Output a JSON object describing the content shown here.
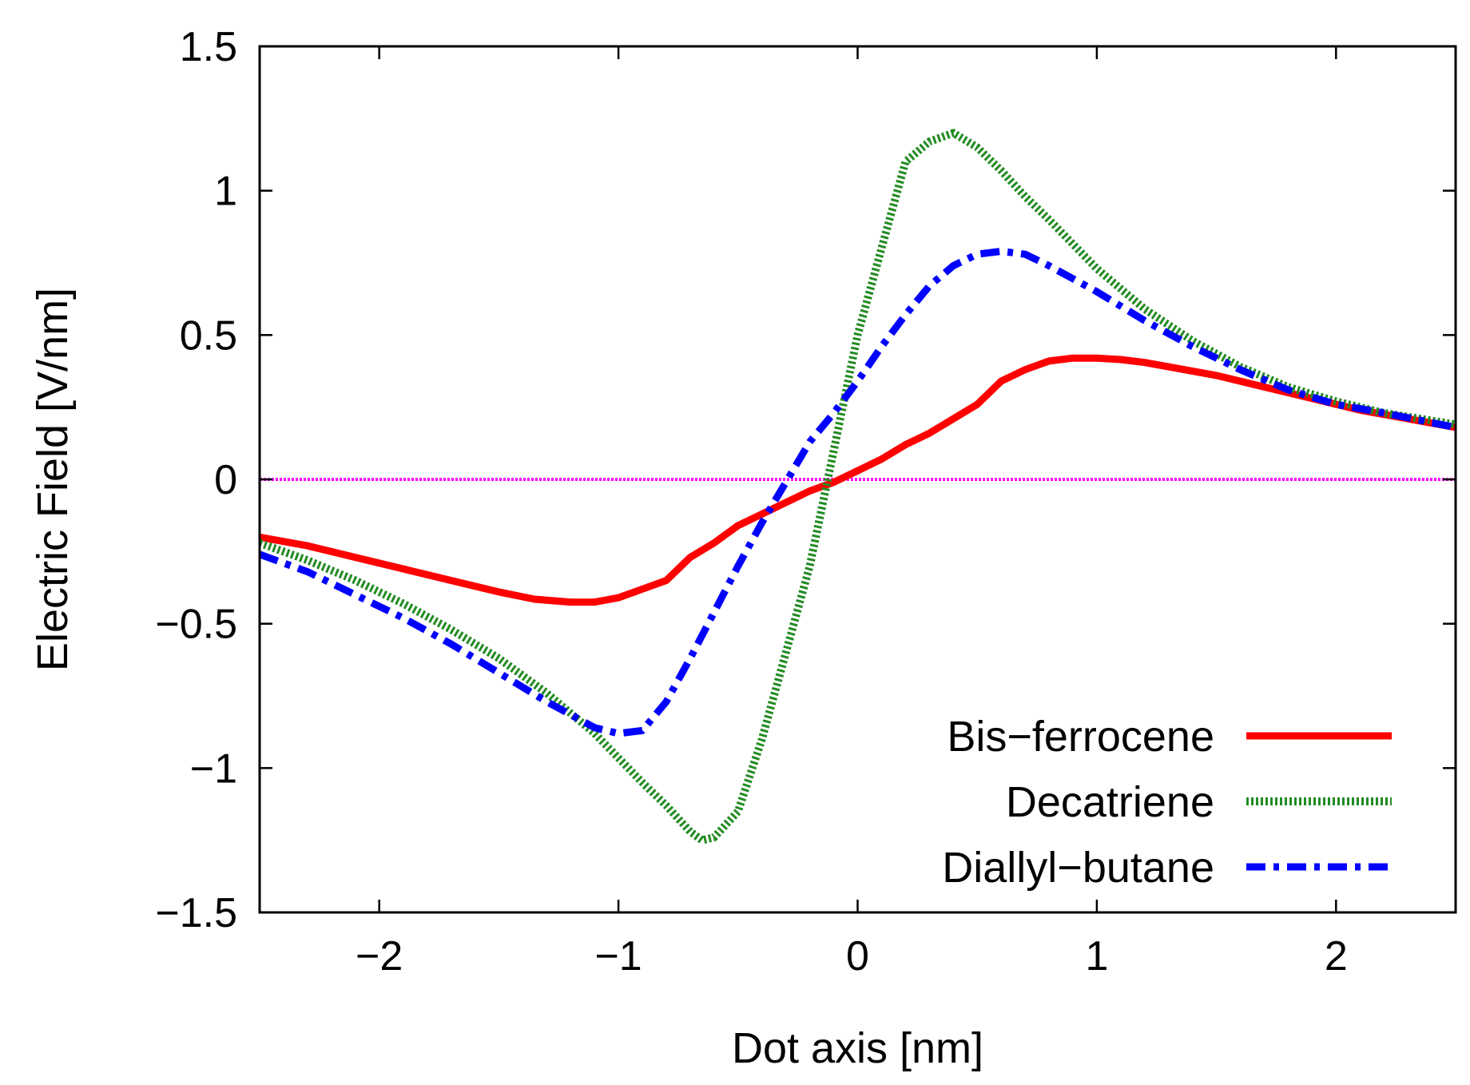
{
  "chart_data": {
    "type": "line",
    "title": "",
    "xlabel": "Dot axis [nm]",
    "ylabel": "Electric Field [V/nm]",
    "xlim": [
      -2.5,
      2.5
    ],
    "ylim": [
      -1.5,
      1.5
    ],
    "xticks": [
      -2,
      -1,
      0,
      1,
      2
    ],
    "xtick_labels": [
      "−2",
      "−1",
      "0",
      "1",
      "2"
    ],
    "yticks": [
      -1.5,
      -1,
      -0.5,
      0,
      0.5,
      1,
      1.5
    ],
    "ytick_labels": [
      "−1.5",
      "−1",
      "−0.5",
      "0",
      "0.5",
      "1",
      "1.5"
    ],
    "grid": false,
    "legend_position": "bottom-right",
    "reference_line": {
      "y": 0,
      "color": "#ff00ff",
      "style": "dotted"
    },
    "series": [
      {
        "name": "Bis−ferrocene",
        "color": "#ff0000",
        "style": "solid",
        "x": [
          -2.5,
          -2.3,
          -2.1,
          -1.9,
          -1.7,
          -1.5,
          -1.35,
          -1.2,
          -1.1,
          -1.0,
          -0.9,
          -0.8,
          -0.7,
          -0.6,
          -0.5,
          -0.4,
          -0.3,
          -0.2,
          -0.1,
          0.0,
          0.1,
          0.2,
          0.3,
          0.4,
          0.5,
          0.6,
          0.7,
          0.8,
          0.9,
          1.0,
          1.1,
          1.2,
          1.3,
          1.5,
          1.7,
          1.9,
          2.1,
          2.3,
          2.5
        ],
        "values": [
          -0.2,
          -0.23,
          -0.27,
          -0.31,
          -0.35,
          -0.39,
          -0.415,
          -0.425,
          -0.425,
          -0.41,
          -0.38,
          -0.35,
          -0.27,
          -0.22,
          -0.16,
          -0.12,
          -0.08,
          -0.04,
          -0.01,
          0.03,
          0.07,
          0.12,
          0.16,
          0.21,
          0.26,
          0.34,
          0.38,
          0.41,
          0.42,
          0.42,
          0.415,
          0.405,
          0.39,
          0.36,
          0.32,
          0.28,
          0.24,
          0.21,
          0.18
        ]
      },
      {
        "name": "Decatriene",
        "color": "#228b22",
        "style": "dotted",
        "x": [
          -2.5,
          -2.3,
          -2.1,
          -1.9,
          -1.7,
          -1.5,
          -1.3,
          -1.1,
          -0.9,
          -0.8,
          -0.7,
          -0.65,
          -0.6,
          -0.5,
          -0.4,
          -0.3,
          -0.2,
          -0.15,
          -0.1,
          -0.05,
          0.0,
          0.05,
          0.1,
          0.2,
          0.3,
          0.4,
          0.5,
          0.6,
          0.7,
          0.8,
          1.0,
          1.2,
          1.4,
          1.6,
          1.8,
          2.0,
          2.2,
          2.5
        ],
        "values": [
          -0.22,
          -0.28,
          -0.35,
          -0.43,
          -0.52,
          -0.62,
          -0.74,
          -0.88,
          -1.05,
          -1.13,
          -1.22,
          -1.25,
          -1.24,
          -1.15,
          -0.9,
          -0.6,
          -0.3,
          -0.1,
          0.1,
          0.3,
          0.5,
          0.65,
          0.8,
          1.1,
          1.17,
          1.2,
          1.15,
          1.07,
          0.98,
          0.9,
          0.73,
          0.59,
          0.48,
          0.39,
          0.32,
          0.27,
          0.23,
          0.19
        ]
      },
      {
        "name": "Diallyl−butane",
        "color": "#0000ff",
        "style": "dash-dot",
        "x": [
          -2.5,
          -2.3,
          -2.1,
          -1.9,
          -1.7,
          -1.5,
          -1.3,
          -1.1,
          -1.0,
          -0.9,
          -0.8,
          -0.7,
          -0.6,
          -0.5,
          -0.4,
          -0.3,
          -0.2,
          -0.1,
          0.0,
          0.1,
          0.2,
          0.3,
          0.4,
          0.5,
          0.6,
          0.7,
          0.8,
          1.0,
          1.2,
          1.4,
          1.6,
          1.8,
          2.0,
          2.2,
          2.5
        ],
        "values": [
          -0.26,
          -0.32,
          -0.4,
          -0.48,
          -0.57,
          -0.67,
          -0.77,
          -0.86,
          -0.88,
          -0.87,
          -0.77,
          -0.62,
          -0.46,
          -0.3,
          -0.15,
          -0.01,
          0.13,
          0.23,
          0.34,
          0.46,
          0.57,
          0.67,
          0.74,
          0.78,
          0.79,
          0.78,
          0.74,
          0.65,
          0.55,
          0.46,
          0.38,
          0.31,
          0.26,
          0.23,
          0.18
        ]
      }
    ]
  }
}
